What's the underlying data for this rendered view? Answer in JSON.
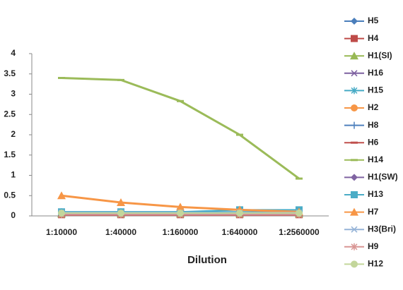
{
  "chart_data": {
    "type": "line",
    "x_label": "Dilution",
    "categories": [
      "1:10000",
      "1:40000",
      "1:160000",
      "1:640000",
      "1:2560000"
    ],
    "ylim": [
      0,
      4
    ],
    "yticks": [
      0,
      0.5,
      1,
      1.5,
      2,
      2.5,
      3,
      3.5,
      4
    ],
    "grid": false,
    "legend": "right",
    "series": [
      {
        "name": "H5",
        "color": "#4a7ebb",
        "marker": "diamond",
        "values": [
          0.05,
          0.05,
          0.05,
          0.05,
          0.05
        ]
      },
      {
        "name": "H4",
        "color": "#be4b48",
        "marker": "square",
        "values": [
          0.03,
          0.03,
          0.03,
          0.03,
          0.03
        ]
      },
      {
        "name": "H1(SI)",
        "color": "#98b954",
        "marker": "triangle",
        "values": [
          0.05,
          0.05,
          0.05,
          0.05,
          0.05
        ]
      },
      {
        "name": "H16",
        "color": "#7d60a0",
        "marker": "x",
        "values": [
          0.05,
          0.05,
          0.05,
          0.05,
          0.05
        ]
      },
      {
        "name": "H15",
        "color": "#46aac5",
        "marker": "star",
        "values": [
          0.1,
          0.1,
          0.1,
          0.1,
          0.1
        ]
      },
      {
        "name": "H2",
        "color": "#f79646",
        "marker": "circle",
        "values": [
          0.05,
          0.05,
          0.05,
          0.05,
          0.05
        ]
      },
      {
        "name": "H8",
        "color": "#4f81bd",
        "marker": "plus",
        "values": [
          0.05,
          0.05,
          0.05,
          0.05,
          0.05
        ]
      },
      {
        "name": "H6",
        "color": "#c0504d",
        "marker": "dash",
        "values": [
          0.02,
          0.02,
          0.02,
          0.02,
          0.02
        ]
      },
      {
        "name": "H14",
        "color": "#9bbb59",
        "marker": "dash",
        "values": [
          3.4,
          3.35,
          2.83,
          2.0,
          0.92
        ]
      },
      {
        "name": "H1(SW)",
        "color": "#8064a2",
        "marker": "diamond",
        "values": [
          0.05,
          0.05,
          0.05,
          0.05,
          0.05
        ]
      },
      {
        "name": "H13",
        "color": "#4bacc6",
        "marker": "square",
        "values": [
          0.1,
          0.1,
          0.1,
          0.15,
          0.15
        ]
      },
      {
        "name": "H7",
        "color": "#f79646",
        "marker": "triangle",
        "values": [
          0.5,
          0.33,
          0.22,
          0.15,
          0.1
        ]
      },
      {
        "name": "H3(Bri)",
        "color": "#95b3d7",
        "marker": "x",
        "values": [
          0.08,
          0.08,
          0.08,
          0.08,
          0.08
        ]
      },
      {
        "name": "H9",
        "color": "#d99694",
        "marker": "star",
        "values": [
          0.03,
          0.03,
          0.03,
          0.03,
          0.03
        ]
      },
      {
        "name": "H12",
        "color": "#c3d69b",
        "marker": "circle",
        "values": [
          0.07,
          0.07,
          0.07,
          0.07,
          0.07
        ]
      }
    ]
  }
}
